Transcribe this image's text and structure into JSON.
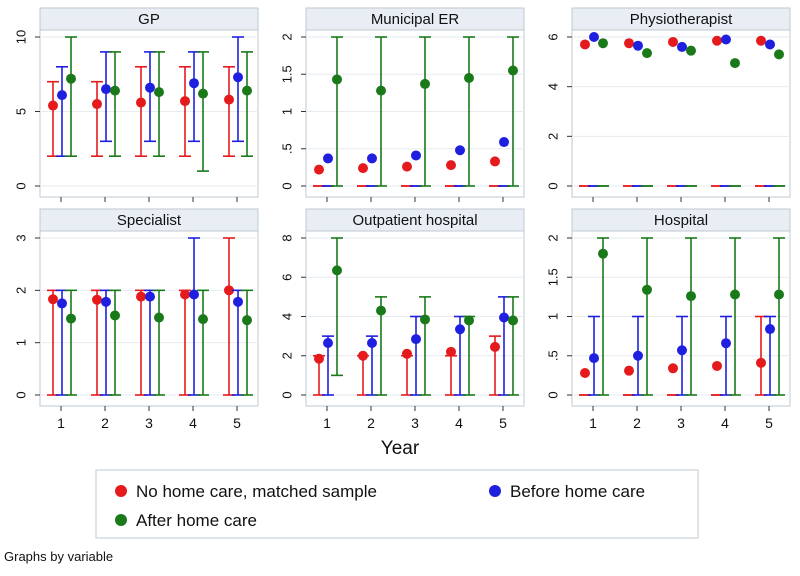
{
  "chart_data": {
    "type": "scatter",
    "subtype": "dot-with-range (min-max whiskers), small multiples",
    "xlabel": "Year",
    "x": [
      1,
      2,
      3,
      4,
      5
    ],
    "note": "Graphs by variable",
    "colors": {
      "No home care, matched sample": "#e41a1c",
      "Before home care": "#1f1fe0",
      "After home care": "#1a7a1a"
    },
    "legend": {
      "placement": "bottom",
      "entries": [
        "No home care, matched sample",
        "Before home care",
        "After home care"
      ]
    },
    "panels": [
      {
        "title": "GP",
        "ylim": [
          0,
          10
        ],
        "yticks": [
          0,
          5,
          10
        ],
        "ytick_labels": [
          "0",
          "5",
          "10"
        ],
        "series": [
          {
            "name": "No home care, matched sample",
            "values": [
              5.4,
              5.5,
              5.6,
              5.7,
              5.8
            ],
            "low": [
              2,
              2,
              2,
              2,
              2
            ],
            "high": [
              7,
              7,
              8,
              8,
              8
            ]
          },
          {
            "name": "Before home care",
            "values": [
              6.1,
              6.5,
              6.6,
              6.9,
              7.3
            ],
            "low": [
              2,
              3,
              3,
              3,
              3
            ],
            "high": [
              8,
              9,
              9,
              9,
              10
            ]
          },
          {
            "name": "After home care",
            "values": [
              7.2,
              6.4,
              6.3,
              6.2,
              6.4
            ],
            "low": [
              2,
              2,
              2,
              1,
              2
            ],
            "high": [
              10,
              9,
              9,
              9,
              9
            ]
          }
        ]
      },
      {
        "title": "Municipal ER",
        "ylim": [
          0,
          2
        ],
        "yticks": [
          0,
          0.5,
          1,
          1.5,
          2
        ],
        "ytick_labels": [
          "0",
          ".5",
          "1",
          "1.5",
          "2"
        ],
        "series": [
          {
            "name": "No home care, matched sample",
            "values": [
              0.22,
              0.24,
              0.26,
              0.28,
              0.33
            ],
            "low": [
              0,
              0,
              0,
              0,
              0
            ],
            "high": [
              0,
              0,
              0,
              0,
              0
            ]
          },
          {
            "name": "Before home care",
            "values": [
              0.37,
              0.37,
              0.41,
              0.48,
              0.59
            ],
            "low": [
              0,
              0,
              0,
              0,
              0
            ],
            "high": [
              0,
              0,
              0,
              0,
              0
            ]
          },
          {
            "name": "After home care",
            "values": [
              1.43,
              1.28,
              1.37,
              1.45,
              1.55
            ],
            "low": [
              0,
              0,
              0,
              0,
              0
            ],
            "high": [
              2,
              2,
              2,
              2,
              2
            ]
          }
        ]
      },
      {
        "title": "Physiotherapist",
        "ylim": [
          0,
          6
        ],
        "yticks": [
          0,
          2,
          4,
          6
        ],
        "ytick_labels": [
          "0",
          "2",
          "4",
          "6"
        ],
        "series": [
          {
            "name": "No home care, matched sample",
            "values": [
              5.7,
              5.75,
              5.8,
              5.85,
              5.85
            ],
            "low": [
              0,
              0,
              0,
              0,
              0
            ],
            "high": [
              0,
              0,
              0,
              0,
              0
            ]
          },
          {
            "name": "Before home care",
            "values": [
              6.0,
              5.65,
              5.6,
              5.9,
              5.7
            ],
            "low": [
              0,
              0,
              0,
              0,
              0
            ],
            "high": [
              0,
              0,
              0,
              0,
              0
            ]
          },
          {
            "name": "After home care",
            "values": [
              5.75,
              5.35,
              5.45,
              4.95,
              5.3
            ],
            "low": [
              0,
              0,
              0,
              0,
              0
            ],
            "high": [
              0,
              0,
              0,
              0,
              0
            ]
          }
        ]
      },
      {
        "title": "Specialist",
        "ylim": [
          0,
          3
        ],
        "yticks": [
          0,
          1,
          2,
          3
        ],
        "ytick_labels": [
          "0",
          "1",
          "2",
          "3"
        ],
        "series": [
          {
            "name": "No home care, matched sample",
            "values": [
              1.83,
              1.82,
              1.88,
              1.92,
              2.0
            ],
            "low": [
              0,
              0,
              0,
              0,
              0
            ],
            "high": [
              2,
              2,
              2,
              2,
              3
            ]
          },
          {
            "name": "Before home care",
            "values": [
              1.75,
              1.78,
              1.88,
              1.92,
              1.78
            ],
            "low": [
              0,
              0,
              0,
              0,
              0
            ],
            "high": [
              2,
              2,
              2,
              3,
              2
            ]
          },
          {
            "name": "After home care",
            "values": [
              1.46,
              1.52,
              1.48,
              1.45,
              1.43
            ],
            "low": [
              0,
              0,
              0,
              0,
              0
            ],
            "high": [
              2,
              2,
              2,
              2,
              2
            ]
          }
        ]
      },
      {
        "title": "Outpatient hospital",
        "ylim": [
          0,
          8
        ],
        "yticks": [
          0,
          2,
          4,
          6,
          8
        ],
        "ytick_labels": [
          "0",
          "2",
          "4",
          "6",
          "8"
        ],
        "series": [
          {
            "name": "No home care, matched sample",
            "values": [
              1.85,
              2.0,
              2.1,
              2.2,
              2.45
            ],
            "low": [
              0,
              0,
              0,
              0,
              0
            ],
            "high": [
              2,
              2,
              2,
              2,
              3
            ]
          },
          {
            "name": "Before home care",
            "values": [
              2.65,
              2.65,
              2.85,
              3.35,
              3.95
            ],
            "low": [
              0,
              0,
              0,
              0,
              0
            ],
            "high": [
              3,
              3,
              4,
              4,
              5
            ]
          },
          {
            "name": "After home care",
            "values": [
              6.35,
              4.3,
              3.85,
              3.8,
              3.8
            ],
            "low": [
              1,
              0,
              0,
              0,
              0
            ],
            "high": [
              8,
              5,
              5,
              4,
              5
            ]
          }
        ]
      },
      {
        "title": "Hospital",
        "ylim": [
          0,
          2
        ],
        "yticks": [
          0,
          0.5,
          1,
          1.5,
          2
        ],
        "ytick_labels": [
          "0",
          ".5",
          "1",
          "1.5",
          "2"
        ],
        "series": [
          {
            "name": "No home care, matched sample",
            "values": [
              0.28,
              0.31,
              0.34,
              0.37,
              0.41
            ],
            "low": [
              0,
              0,
              0,
              0,
              0
            ],
            "high": [
              0,
              0,
              0,
              0,
              1
            ]
          },
          {
            "name": "Before home care",
            "values": [
              0.47,
              0.5,
              0.57,
              0.66,
              0.84
            ],
            "low": [
              0,
              0,
              0,
              0,
              0
            ],
            "high": [
              1,
              1,
              1,
              1,
              1
            ]
          },
          {
            "name": "After home care",
            "values": [
              1.8,
              1.34,
              1.26,
              1.28,
              1.28
            ],
            "low": [
              0,
              0,
              0,
              0,
              0
            ],
            "high": [
              2,
              2,
              2,
              2,
              2
            ]
          }
        ]
      }
    ]
  }
}
